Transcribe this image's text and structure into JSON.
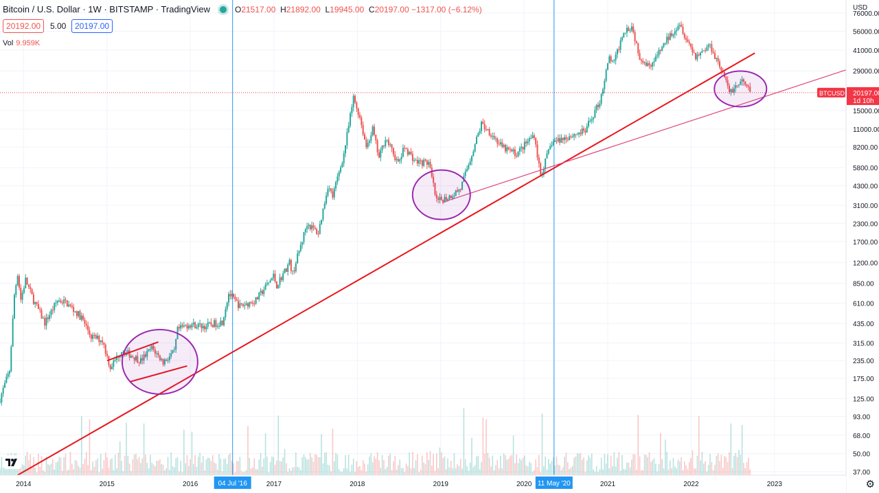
{
  "header": {
    "symbol": "Bitcoin / U.S. Dollar · 1W · BITSTAMP · TradingView",
    "open": "21517.00",
    "high": "21892.00",
    "low": "19945.00",
    "close": "20197.00",
    "change": "−1317.00 (−6.12%)",
    "bid": "20192.00",
    "spread": "5.00",
    "ask": "20197.00",
    "vol_label": "Vol",
    "vol_value": "9.959K"
  },
  "colors": {
    "up": "#26a69a",
    "down": "#ef5350",
    "trendline": "#e8161c",
    "trendline_thin": "#e0457b",
    "circle": "#9c27b0",
    "marker": "#2196f3",
    "price_label": "#f23645"
  },
  "icons": {
    "logo": "tradingview-logo-icon",
    "settings": "gear-icon"
  },
  "chart_data": {
    "type": "candlestick",
    "title": "Bitcoin / U.S. Dollar · 1W · BITSTAMP",
    "scale": "log",
    "currency_label": "USD",
    "ylim": [
      35,
      90000
    ],
    "xlim": [
      "2013-09-20",
      "2023-11-10"
    ],
    "y_ticks": [
      "76000.00",
      "56000.00",
      "41000.00",
      "29000.00",
      "20197.00",
      "15000.00",
      "11000.00",
      "8200.00",
      "5800.00",
      "4300.00",
      "3100.00",
      "2300.00",
      "1700.00",
      "1200.00",
      "850.00",
      "610.00",
      "435.00",
      "315.00",
      "235.00",
      "175.00",
      "125.00",
      "93.00",
      "68.00",
      "50.00",
      "37.00"
    ],
    "x_ticks": [
      "2014",
      "2015",
      "2016",
      "04 Jul '16",
      "2017",
      "2018",
      "2019",
      "2020",
      "11 May '20",
      "2021",
      "2022",
      "2023"
    ],
    "last_price": {
      "label": "BTCUSD",
      "value": "20197.00",
      "countdown": "1d 10h"
    },
    "vertical_markers": [
      {
        "date": "2016-07-04",
        "label": "04 Jul '16"
      },
      {
        "date": "2020-05-11",
        "label": "11 May '20"
      }
    ],
    "price_path": [
      [
        "2013-09-20",
        125
      ],
      [
        "2013-11-01",
        200
      ],
      [
        "2013-11-22",
        700
      ],
      [
        "2013-12-06",
        1000
      ],
      [
        "2013-12-20",
        650
      ],
      [
        "2014-01-10",
        900
      ],
      [
        "2014-02-14",
        640
      ],
      [
        "2014-04-04",
        440
      ],
      [
        "2014-05-30",
        640
      ],
      [
        "2014-07-04",
        620
      ],
      [
        "2014-09-12",
        480
      ],
      [
        "2014-10-24",
        350
      ],
      [
        "2014-12-12",
        330
      ],
      [
        "2015-01-16",
        210
      ],
      [
        "2015-03-06",
        280
      ],
      [
        "2015-05-29",
        235
      ],
      [
        "2015-07-17",
        290
      ],
      [
        "2015-09-04",
        230
      ],
      [
        "2015-10-23",
        270
      ],
      [
        "2015-11-06",
        390
      ],
      [
        "2015-12-25",
        430
      ],
      [
        "2016-03-04",
        415
      ],
      [
        "2016-05-20",
        450
      ],
      [
        "2016-06-17",
        720
      ],
      [
        "2016-07-08",
        650
      ],
      [
        "2016-08-05",
        580
      ],
      [
        "2016-10-14",
        640
      ],
      [
        "2016-12-30",
        960
      ],
      [
        "2017-01-13",
        820
      ],
      [
        "2017-03-10",
        1200
      ],
      [
        "2017-03-24",
        1000
      ],
      [
        "2017-05-26",
        2300
      ],
      [
        "2017-07-14",
        1950
      ],
      [
        "2017-08-25",
        4300
      ],
      [
        "2017-09-15",
        3600
      ],
      [
        "2017-11-03",
        7300
      ],
      [
        "2017-12-15",
        18500
      ],
      [
        "2018-01-12",
        13500
      ],
      [
        "2018-02-09",
        8200
      ],
      [
        "2018-03-09",
        11000
      ],
      [
        "2018-04-06",
        6800
      ],
      [
        "2018-05-04",
        9600
      ],
      [
        "2018-06-29",
        6200
      ],
      [
        "2018-07-27",
        8200
      ],
      [
        "2018-09-14",
        6400
      ],
      [
        "2018-11-09",
        6300
      ],
      [
        "2018-12-14",
        3300
      ],
      [
        "2019-02-08",
        3600
      ],
      [
        "2019-03-29",
        4100
      ],
      [
        "2019-05-31",
        8600
      ],
      [
        "2019-06-28",
        12000
      ],
      [
        "2019-08-09",
        10300
      ],
      [
        "2019-09-27",
        8100
      ],
      [
        "2019-11-29",
        7300
      ],
      [
        "2020-02-14",
        10100
      ],
      [
        "2020-03-13",
        5100
      ],
      [
        "2020-05-01",
        8800
      ],
      [
        "2020-07-24",
        9900
      ],
      [
        "2020-09-25",
        10700
      ],
      [
        "2020-11-27",
        17500
      ],
      [
        "2021-01-08",
        36000
      ],
      [
        "2021-01-29",
        33000
      ],
      [
        "2021-03-12",
        57000
      ],
      [
        "2021-04-16",
        61000
      ],
      [
        "2021-05-21",
        37000
      ],
      [
        "2021-06-25",
        32000
      ],
      [
        "2021-07-23",
        34000
      ],
      [
        "2021-09-10",
        47000
      ],
      [
        "2021-11-12",
        65000
      ],
      [
        "2021-12-10",
        50000
      ],
      [
        "2022-01-21",
        37000
      ],
      [
        "2022-03-25",
        44500
      ],
      [
        "2022-05-13",
        30000
      ],
      [
        "2022-06-17",
        20500
      ],
      [
        "2022-07-22",
        22800
      ],
      [
        "2022-08-12",
        24200
      ],
      [
        "2022-09-09",
        21300
      ],
      [
        "2022-09-16",
        20197
      ]
    ],
    "trendlines": [
      {
        "name": "main",
        "from": [
          "2013-12-06",
          35
        ],
        "to": [
          "2022-10-07",
          39000
        ]
      },
      {
        "name": "2015-segment",
        "from": [
          "2015-01-02",
          235
        ],
        "to": [
          "2015-08-14",
          320
        ]
      },
      {
        "name": "2015-segment-2",
        "from": [
          "2015-04-10",
          165
        ],
        "to": [
          "2015-12-18",
          215
        ]
      },
      {
        "name": "thin",
        "from": [
          "2019-01-18",
          3300
        ],
        "to": [
          "2023-09-01",
          27000
        ]
      }
    ],
    "highlight_circles": [
      {
        "center": [
          "2015-08-21",
          230
        ]
      },
      {
        "center": [
          "2019-01-04",
          3700
        ]
      },
      {
        "center": [
          "2022-08-05",
          21500
        ]
      }
    ]
  }
}
